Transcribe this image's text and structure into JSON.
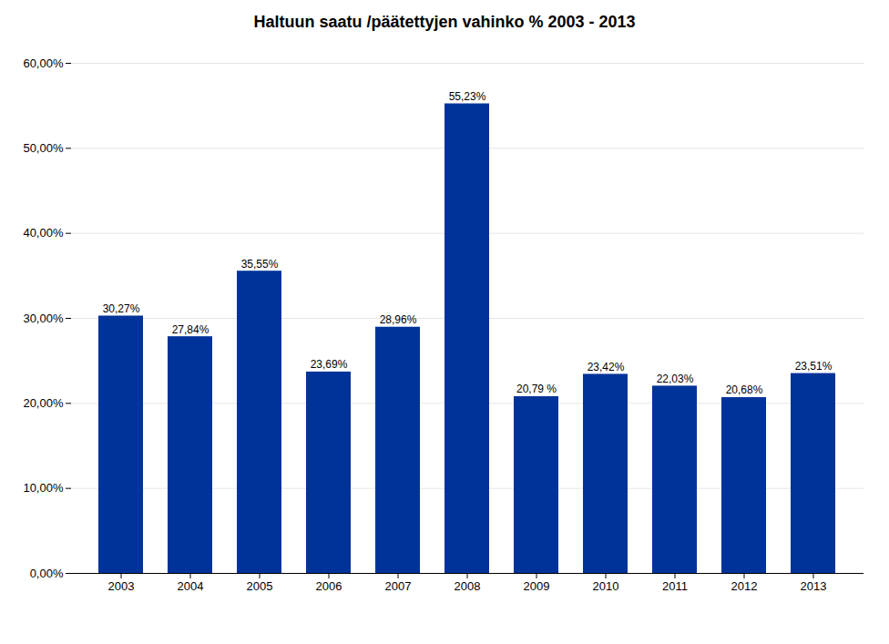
{
  "chart_data": {
    "type": "bar",
    "title": "Haltuun saatu /päätettyjen vahinko % 2003 - 2013",
    "categories": [
      "2003",
      "2004",
      "2005",
      "2006",
      "2007",
      "2008",
      "2009",
      "2010",
      "2011",
      "2012",
      "2013"
    ],
    "values": [
      0.3027,
      0.2784,
      0.3555,
      0.2369,
      0.2896,
      0.5523,
      0.2079,
      0.2342,
      0.2203,
      0.2068,
      0.2351
    ],
    "value_labels": [
      "30,27%",
      "27,84%",
      "35,55%",
      "23,69%",
      "28,96%",
      "55,23%",
      "20,79 %",
      "23,42%",
      "22,03%",
      "20,68%",
      "23,51%"
    ],
    "data_labels": true,
    "color": "#003399",
    "ylim": [
      0,
      0.6
    ],
    "yticks": [
      {
        "value": 0.0,
        "label": "0,00%"
      },
      {
        "value": 0.1,
        "label": "10,00%"
      },
      {
        "value": 0.2,
        "label": "20,00%"
      },
      {
        "value": 0.3,
        "label": "30,00%"
      },
      {
        "value": 0.4,
        "label": "40,00%"
      },
      {
        "value": 0.5,
        "label": "50,00%"
      },
      {
        "value": 0.6,
        "label": "60,00%"
      }
    ],
    "grid": true
  }
}
